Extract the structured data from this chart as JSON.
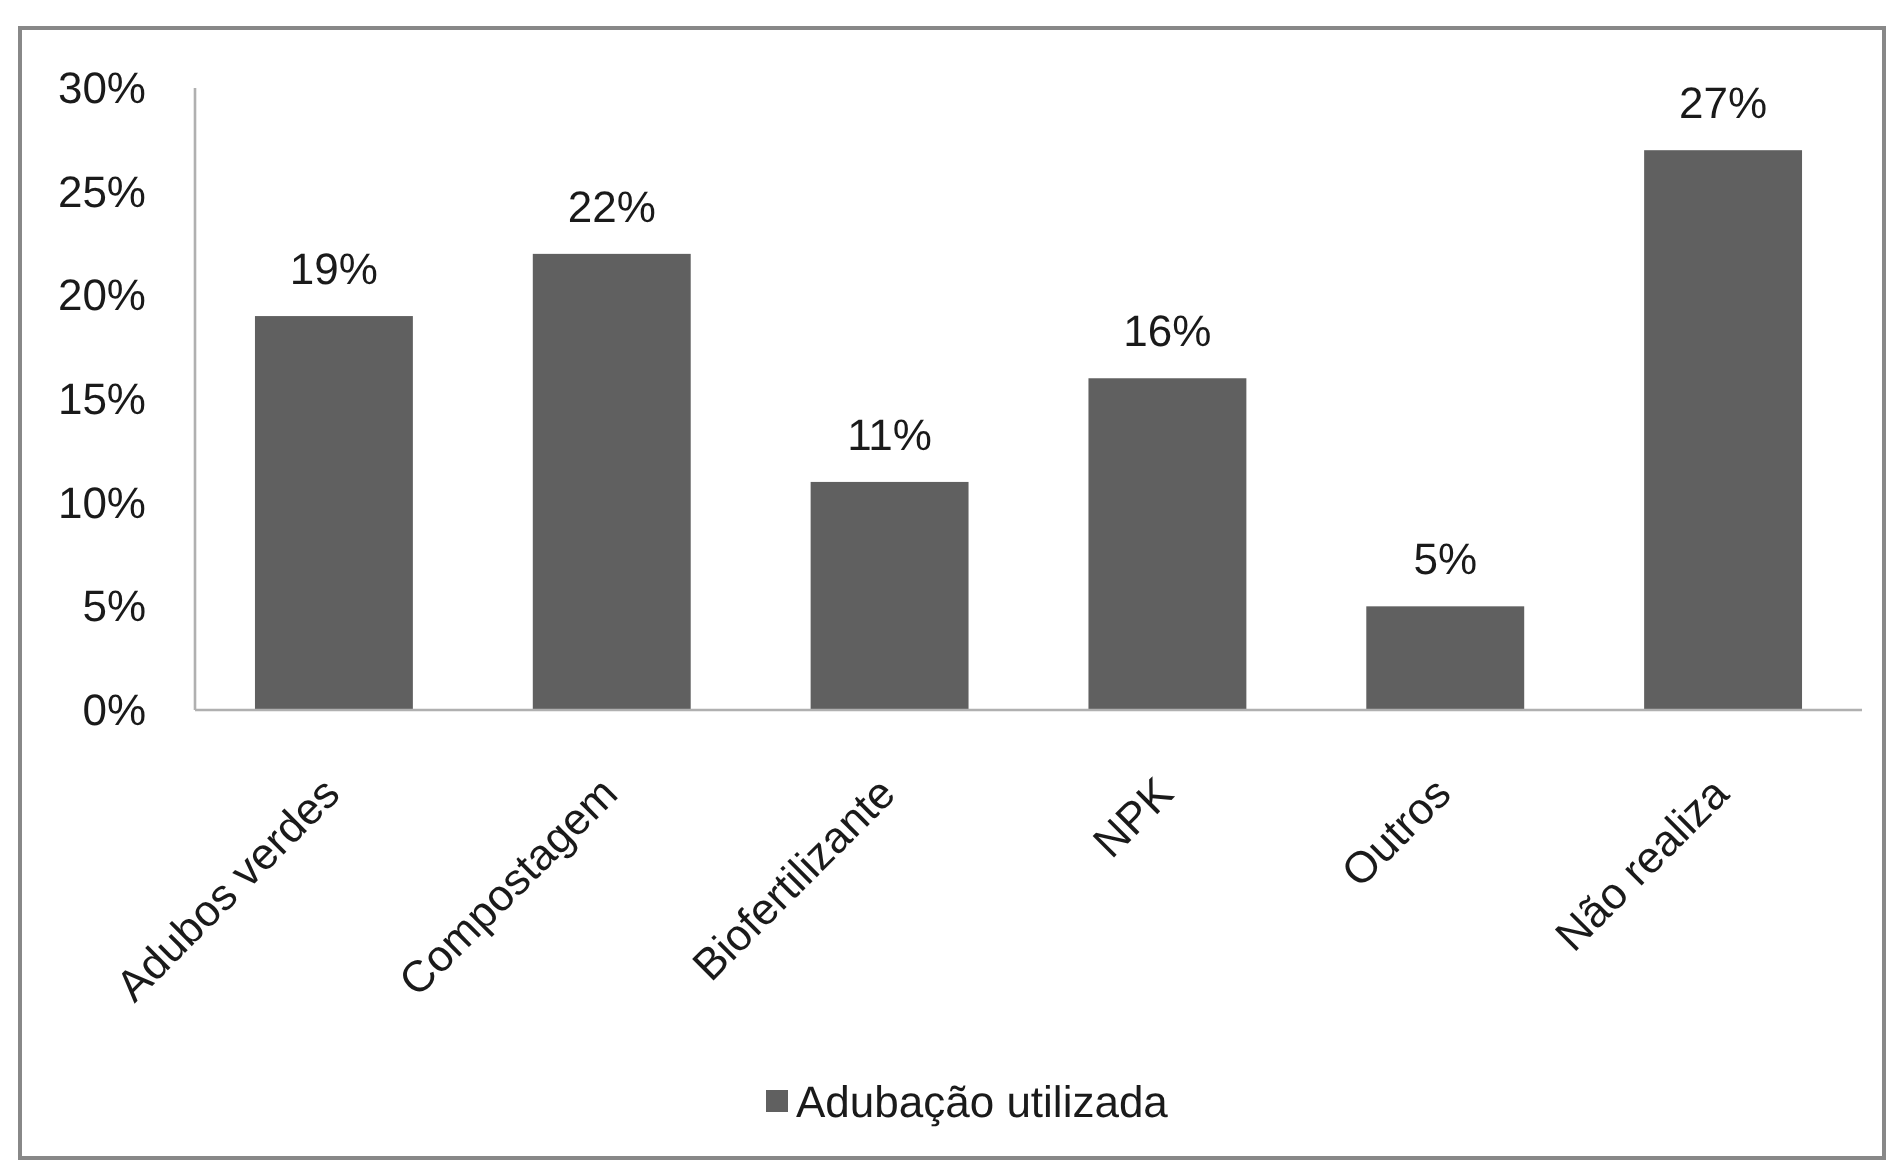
{
  "chart_data": {
    "type": "bar",
    "categories": [
      "Adubos verdes",
      "Compostagem",
      "Biofertilizante",
      "NPK",
      "Outros",
      "Não realiza"
    ],
    "series": [
      {
        "name": "Adubação utilizada",
        "color": "#606060",
        "values": [
          19,
          22,
          11,
          16,
          5,
          27
        ],
        "value_labels": [
          "19%",
          "22%",
          "11%",
          "16%",
          "5%",
          "27%"
        ]
      }
    ],
    "ylim": [
      0,
      30
    ],
    "yticks": [
      {
        "value": 0,
        "label": "0%"
      },
      {
        "value": 5,
        "label": "5%"
      },
      {
        "value": 10,
        "label": "10%"
      },
      {
        "value": 15,
        "label": "15%"
      },
      {
        "value": 20,
        "label": "20%"
      },
      {
        "value": 25,
        "label": "25%"
      },
      {
        "value": 30,
        "label": "30%"
      }
    ],
    "legend": "bottom"
  }
}
